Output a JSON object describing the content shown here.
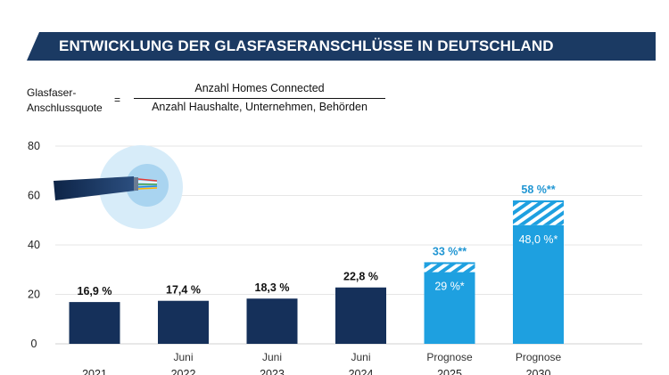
{
  "banner": {
    "title": "ENTWICKLUNG DER GLASFASERANSCHLÜSSE IN DEUTSCHLAND"
  },
  "formula": {
    "lhs_line1": "Glasfaser-",
    "lhs_line2": "Anschlussquote",
    "equals": "=",
    "numerator": "Anzahl Homes Connected",
    "denominator": "Anzahl Haushalte, Unternehmen, Behörden"
  },
  "colors": {
    "navy": "#15305a",
    "light_blue": "#1ea0e0",
    "banner": "#1b3a63",
    "label_blue": "#2196d3"
  },
  "icon": "fiber-cable-icon",
  "chart_data": {
    "type": "bar",
    "y_ticks": [
      0,
      20,
      40,
      60,
      80
    ],
    "ylim": [
      0,
      80
    ],
    "grid": true,
    "categories": [
      {
        "top": "",
        "bottom": "2021"
      },
      {
        "top": "Juni",
        "bottom": "2022"
      },
      {
        "top": "Juni",
        "bottom": "2023"
      },
      {
        "top": "Juni",
        "bottom": "2024"
      },
      {
        "top": "Prognose",
        "bottom": "2025"
      },
      {
        "top": "Prognose",
        "bottom": "2030"
      }
    ],
    "bars": [
      {
        "value": 16.9,
        "label": "16,9 %",
        "kind": "actual"
      },
      {
        "value": 17.4,
        "label": "17,4 %",
        "kind": "actual"
      },
      {
        "value": 18.3,
        "label": "18,3 %",
        "kind": "actual"
      },
      {
        "value": 22.8,
        "label": "22,8 %",
        "kind": "actual"
      },
      {
        "value": 29,
        "label": "29 %*",
        "kind": "forecast",
        "upper": 33,
        "upper_label": "33 %**"
      },
      {
        "value": 48,
        "label": "48,0 %*",
        "kind": "forecast",
        "upper": 58,
        "upper_label": "58 %**"
      }
    ]
  }
}
